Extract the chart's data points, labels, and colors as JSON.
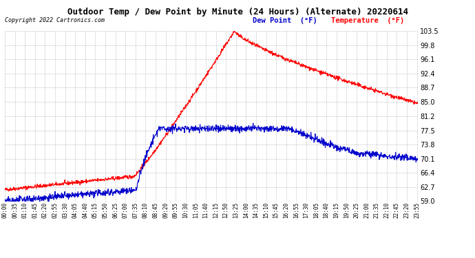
{
  "title": "Outdoor Temp / Dew Point by Minute (24 Hours) (Alternate) 20220614",
  "copyright_text": "Copyright 2022 Cartronics.com",
  "legend_dew": "Dew Point  (°F)",
  "legend_temp": "Temperature  (°F)",
  "temp_color": "#ff0000",
  "dew_color": "#0000cc",
  "bg_color": "#ffffff",
  "grid_color": "#999999",
  "ylim": [
    59.0,
    103.5
  ],
  "yticks": [
    59.0,
    62.7,
    66.4,
    70.1,
    73.8,
    77.5,
    81.2,
    85.0,
    88.7,
    92.4,
    96.1,
    99.8,
    103.5
  ],
  "title_fontsize": 9,
  "copyright_fontsize": 6,
  "legend_fontsize": 7.5,
  "axis_fontsize": 5.5,
  "line_width": 0.8
}
